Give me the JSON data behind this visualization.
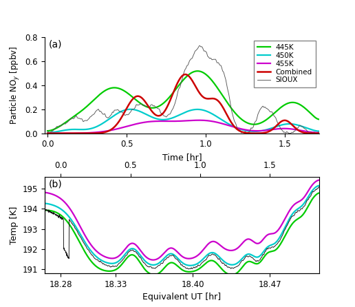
{
  "fig_title_a": "(a)",
  "fig_title_b": "(b)",
  "ylabel_a": "Particle NO$_y$ [ppbv]",
  "xlabel_a": "Time [hr]",
  "ylabel_b": "Temp [K]",
  "xlabel_b": "Equivalent UT [hr]",
  "ylim_a": [
    0.0,
    0.8
  ],
  "yticks_a": [
    0.0,
    0.2,
    0.4,
    0.6,
    0.8
  ],
  "xlim_a": [
    -0.02,
    1.72
  ],
  "xticks_a": [
    0.0,
    0.5,
    1.0,
    1.5
  ],
  "ylim_b": [
    190.8,
    195.6
  ],
  "yticks_b": [
    191,
    192,
    193,
    194,
    195
  ],
  "xlim_b": [
    18.265,
    18.515
  ],
  "xticks_b": [
    18.28,
    18.33,
    18.4,
    18.47
  ],
  "xticks_b_labels": [
    "18.28",
    "18.33",
    "18.40",
    "18.47"
  ],
  "xticks_top_b": [
    18.28,
    18.3433,
    18.4067,
    18.47
  ],
  "xticks_top_b_labels": [
    "0.0",
    "0.5",
    "1.0",
    "1.5"
  ],
  "color_445K": "#00cc00",
  "color_450K": "#00cccc",
  "color_455K": "#cc00cc",
  "color_combined": "#cc0000",
  "color_sioux": "#555555",
  "color_mtp": "#111111",
  "legend_labels": [
    "445K",
    "450K",
    "455K",
    "Combined",
    "SIOUX"
  ],
  "lw_smooth": 1.6,
  "lw_noisy": 0.65,
  "background": "#ffffff"
}
